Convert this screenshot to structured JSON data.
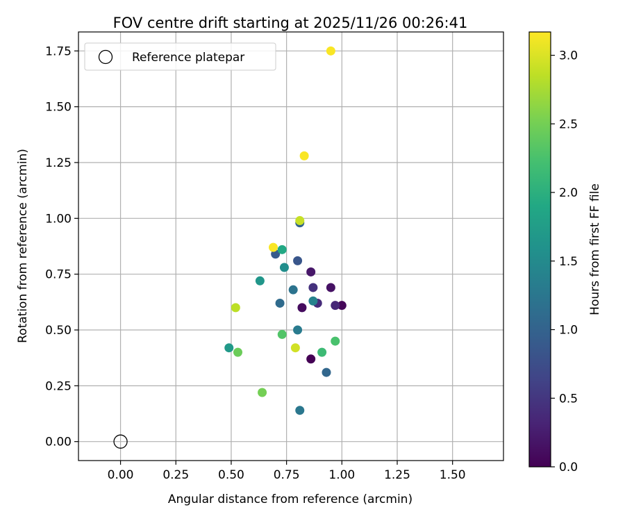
{
  "chart_data": {
    "type": "scatter",
    "title": "FOV centre drift starting at 2025/11/26 00:26:41",
    "xlabel": "Angular distance from reference (arcmin)",
    "ylabel": "Rotation from reference (arcmin)",
    "xlim": [
      -0.19,
      1.73
    ],
    "ylim": [
      -0.085,
      1.835
    ],
    "xticks": [
      0.0,
      0.25,
      0.5,
      0.75,
      1.0,
      1.25,
      1.5
    ],
    "xtick_labels": [
      "0.00",
      "0.25",
      "0.50",
      "0.75",
      "1.00",
      "1.25",
      "1.50"
    ],
    "yticks": [
      0.0,
      0.25,
      0.5,
      0.75,
      1.0,
      1.25,
      1.5,
      1.75
    ],
    "ytick_labels": [
      "0.00",
      "0.25",
      "0.50",
      "0.75",
      "1.00",
      "1.25",
      "1.50",
      "1.75"
    ],
    "grid": true,
    "legend": {
      "position": "top-left",
      "entries": [
        {
          "label": "Reference platepar",
          "marker": "open-circle"
        }
      ]
    },
    "reference_point": {
      "x": 0.0,
      "y": 0.0
    },
    "colorbar": {
      "label": "Hours from first FF file",
      "colormap": "viridis",
      "range": [
        0.0,
        3.17
      ],
      "ticks": [
        0.0,
        0.5,
        1.0,
        1.5,
        2.0,
        2.5,
        3.0
      ],
      "tick_labels": [
        "0.0",
        "0.5",
        "1.0",
        "1.5",
        "2.0",
        "2.5",
        "3.0"
      ]
    },
    "points": [
      {
        "x": 0.86,
        "y": 0.37,
        "hours": 0.0
      },
      {
        "x": 1.0,
        "y": 0.61,
        "hours": 0.05
      },
      {
        "x": 0.82,
        "y": 0.6,
        "hours": 0.1
      },
      {
        "x": 0.95,
        "y": 0.69,
        "hours": 0.15
      },
      {
        "x": 0.86,
        "y": 0.76,
        "hours": 0.2
      },
      {
        "x": 0.97,
        "y": 0.61,
        "hours": 0.35
      },
      {
        "x": 0.89,
        "y": 0.62,
        "hours": 0.4
      },
      {
        "x": 0.87,
        "y": 0.69,
        "hours": 0.45
      },
      {
        "x": 0.8,
        "y": 0.81,
        "hours": 0.85
      },
      {
        "x": 0.7,
        "y": 0.84,
        "hours": 0.9
      },
      {
        "x": 0.81,
        "y": 0.98,
        "hours": 1.0
      },
      {
        "x": 0.93,
        "y": 0.31,
        "hours": 1.05
      },
      {
        "x": 0.72,
        "y": 0.62,
        "hours": 1.1
      },
      {
        "x": 0.78,
        "y": 0.68,
        "hours": 1.2
      },
      {
        "x": 0.81,
        "y": 0.14,
        "hours": 1.25
      },
      {
        "x": 0.8,
        "y": 0.5,
        "hours": 1.3
      },
      {
        "x": 0.87,
        "y": 0.63,
        "hours": 1.4
      },
      {
        "x": 0.74,
        "y": 0.78,
        "hours": 1.55
      },
      {
        "x": 0.63,
        "y": 0.72,
        "hours": 1.65
      },
      {
        "x": 0.49,
        "y": 0.42,
        "hours": 1.7
      },
      {
        "x": 0.73,
        "y": 0.86,
        "hours": 1.9
      },
      {
        "x": 0.91,
        "y": 0.4,
        "hours": 2.15
      },
      {
        "x": 0.97,
        "y": 0.45,
        "hours": 2.25
      },
      {
        "x": 0.73,
        "y": 0.48,
        "hours": 2.3
      },
      {
        "x": 0.53,
        "y": 0.4,
        "hours": 2.45
      },
      {
        "x": 0.64,
        "y": 0.22,
        "hours": 2.5
      },
      {
        "x": 0.52,
        "y": 0.6,
        "hours": 2.85
      },
      {
        "x": 0.79,
        "y": 0.42,
        "hours": 2.95
      },
      {
        "x": 0.81,
        "y": 0.99,
        "hours": 2.9
      },
      {
        "x": 0.69,
        "y": 0.87,
        "hours": 3.15
      },
      {
        "x": 0.83,
        "y": 1.28,
        "hours": 3.15
      },
      {
        "x": 0.95,
        "y": 1.75,
        "hours": 3.15
      }
    ]
  }
}
